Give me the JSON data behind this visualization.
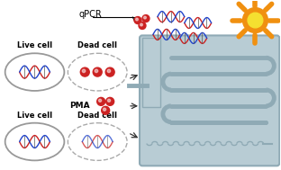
{
  "bg_color": "#ffffff",
  "chip_color": "#b8ccd4",
  "chip_edge": "#8faab5",
  "ch_color": "#8faab5",
  "sun_outer": "#f09010",
  "sun_inner": "#f5e030",
  "dna_red": "#cc2222",
  "dna_blue": "#2244cc",
  "cell_solid_color": "#999999",
  "cell_dashed_color": "#aaaaaa",
  "dot_color": "#cc2222",
  "text_color": "#000000",
  "qpcr_label": "qPCR",
  "live_label": "Live cell",
  "dead_label": "Dead cell",
  "pma_label": "PMA"
}
